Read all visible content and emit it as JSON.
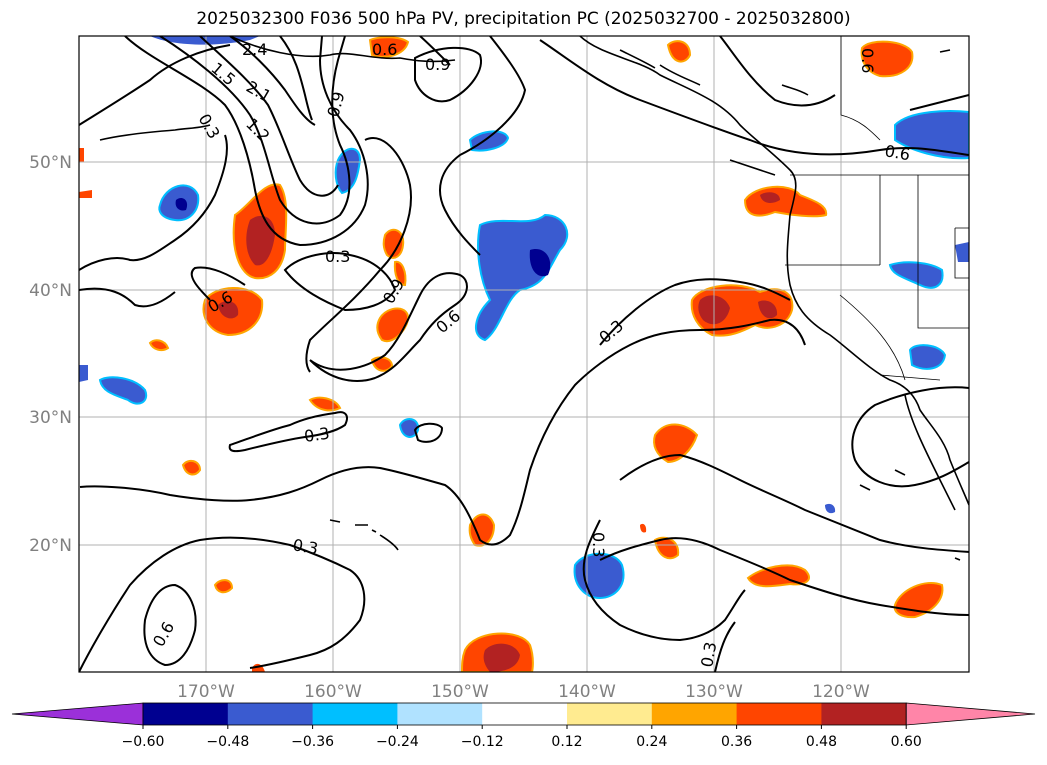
{
  "title": "2025032300 F036 500 hPa PV, precipitation PC (2025032700 - 2025032800)",
  "lat_labels": [
    "50°N",
    "40°N",
    "30°N",
    "20°N"
  ],
  "lon_labels": [
    "170°W",
    "160°W",
    "150°W",
    "140°W",
    "130°W",
    "120°W"
  ],
  "contour_labels": [
    "2.4",
    "2.1",
    "1.5",
    "1.2",
    "0.9",
    "0.3",
    "0.3",
    "0.6",
    "0.9",
    "0.6",
    "0.3",
    "0.3",
    "0.3",
    "0.6",
    "0.3",
    "0.3",
    "0.9",
    "0.6",
    "0.6",
    "0.6"
  ],
  "colorbar": {
    "ticks": [
      "−0.60",
      "−0.48",
      "−0.36",
      "−0.24",
      "−0.12",
      "0.12",
      "0.24",
      "0.36",
      "0.48",
      "0.60"
    ],
    "colors": [
      "#9b30d9",
      "#000090",
      "#3a5bd0",
      "#00bfff",
      "#b0e2ff",
      "#ffffff",
      "#ffeb90",
      "#ffa500",
      "#ff4500",
      "#b22222",
      "#ff85a8"
    ]
  }
}
